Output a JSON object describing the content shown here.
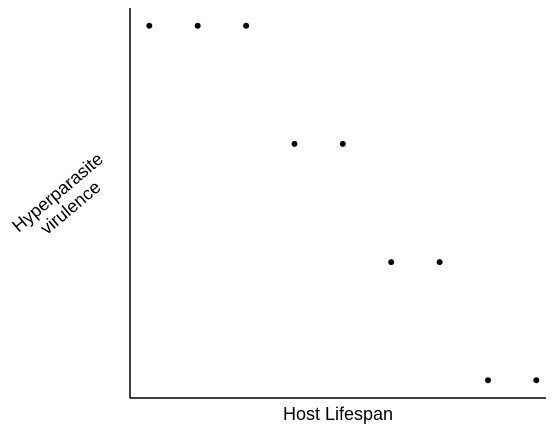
{
  "chart_data": {
    "type": "scatter",
    "title": "",
    "xlabel": "Host Lifespan",
    "ylabel_lines": [
      "Hyperparasite",
      "virulence"
    ],
    "x": [
      1,
      2,
      3,
      4,
      5,
      6,
      7,
      8,
      9
    ],
    "y": [
      4,
      4,
      4,
      3,
      3,
      2,
      2,
      1,
      1
    ],
    "xlim": [
      0.6,
      9.2
    ],
    "ylim": [
      0.85,
      4.15
    ],
    "grid": false,
    "ticks": false,
    "legend": "none",
    "colors": {
      "point": "#000000",
      "axis": "#000000"
    }
  }
}
